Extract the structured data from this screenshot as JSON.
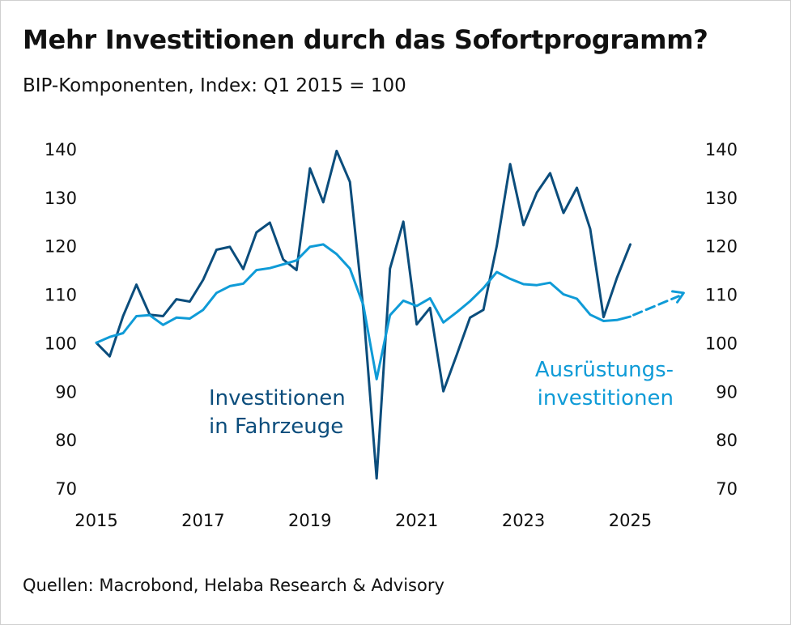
{
  "chart_data": {
    "type": "line",
    "title": "Mehr Investitionen durch das Sofortprogramm?",
    "subtitle": "BIP-Komponenten, Index: Q1 2015 = 100",
    "source": "Quellen: Macrobond, Helaba Research & Advisory",
    "xlabel": "",
    "ylabel": "",
    "xlim": [
      2015.0,
      2026.1
    ],
    "ylim": [
      70,
      140
    ],
    "yticks": [
      140,
      130,
      120,
      110,
      100,
      90,
      80,
      70
    ],
    "xticks": [
      "2015",
      "2017",
      "2019",
      "2021",
      "2023",
      "2025"
    ],
    "grid": false,
    "series": [
      {
        "name": "Investitionen in Fahrzeuge",
        "label_lines": [
          "Investitionen",
          "in Fahrzeuge"
        ],
        "color": "#0b4d7c",
        "x": [
          2015.0,
          2015.25,
          2015.5,
          2015.75,
          2016.0,
          2016.25,
          2016.5,
          2016.75,
          2017.0,
          2017.25,
          2017.5,
          2017.75,
          2018.0,
          2018.25,
          2018.5,
          2018.75,
          2019.0,
          2019.25,
          2019.5,
          2019.75,
          2020.0,
          2020.25,
          2020.5,
          2020.75,
          2021.0,
          2021.25,
          2021.5,
          2021.75,
          2022.0,
          2022.25,
          2022.5,
          2022.75,
          2023.0,
          2023.25,
          2023.5,
          2023.75,
          2024.0,
          2024.25,
          2024.5,
          2024.75,
          2025.0
        ],
        "values": [
          100,
          97.2,
          105.5,
          112,
          105.8,
          105.5,
          109,
          108.5,
          113,
          119.2,
          119.8,
          115.2,
          122.8,
          124.8,
          117.2,
          115,
          136,
          129,
          139.6,
          133.2,
          107,
          72,
          115.3,
          125,
          103.8,
          107.2,
          90,
          97.5,
          105.2,
          106.8,
          120,
          136.9,
          124.3,
          131,
          135,
          126.8,
          132,
          123.5,
          105.3,
          113.4,
          120.3
        ]
      },
      {
        "name": "Ausrüstungsinvestitionen",
        "label_lines": [
          "Ausrüstungs-",
          "investitionen"
        ],
        "color": "#0f9bd7",
        "x": [
          2015.0,
          2015.25,
          2015.5,
          2015.75,
          2016.0,
          2016.25,
          2016.5,
          2016.75,
          2017.0,
          2017.25,
          2017.5,
          2017.75,
          2018.0,
          2018.25,
          2018.5,
          2018.75,
          2019.0,
          2019.25,
          2019.5,
          2019.75,
          2020.0,
          2020.25,
          2020.5,
          2020.75,
          2021.0,
          2021.25,
          2021.5,
          2021.75,
          2022.0,
          2022.25,
          2022.5,
          2022.75,
          2023.0,
          2023.25,
          2023.5,
          2023.75,
          2024.0,
          2024.25,
          2024.5,
          2024.75,
          2025.0
        ],
        "values": [
          100,
          101.2,
          102,
          105.5,
          105.7,
          103.7,
          105.2,
          105,
          106.8,
          110.3,
          111.7,
          112.2,
          115,
          115.4,
          116.2,
          117,
          119.8,
          120.3,
          118.3,
          115.3,
          107.8,
          92.5,
          105.7,
          108.7,
          107.6,
          109.2,
          104.2,
          106.3,
          108.6,
          111.3,
          114.6,
          113.2,
          112.1,
          111.9,
          112.4,
          110,
          109.1,
          105.8,
          104.5,
          104.7,
          105.4
        ],
        "projection": {
          "style": "dashed-arrow",
          "x": [
            2025.0,
            2026.0
          ],
          "values": [
            105.4,
            110.3
          ]
        }
      }
    ]
  }
}
